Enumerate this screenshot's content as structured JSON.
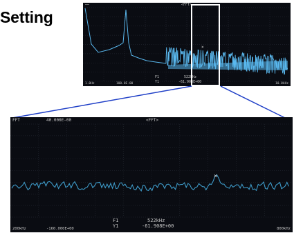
{
  "title": "Setting",
  "top_screen": {
    "header_mode": "<FFT>",
    "footer": {
      "left": "1.0Hz",
      "mid": "100.0E-00",
      "right": "10.0kHz"
    },
    "marker": {
      "f_label": "F1",
      "f_value": "522kHz",
      "y_label": "Y1",
      "y_value": "-61.908E+00"
    },
    "trace_color": "#5ab8ee"
  },
  "bottom_screen": {
    "header_left": "FFT",
    "header_ref": "40.000E-00",
    "header_mode": "<FFT>",
    "footer": {
      "left": "200kHz",
      "mid": "-160.000E+00",
      "right": "800kHz"
    },
    "marker": {
      "f_label": "F1",
      "f_value": "522kHz",
      "y_label": "Y1",
      "y_value": "-61.908E+00"
    },
    "trace_color": "#3e9bc9"
  },
  "connector_color": "#1f3fc7"
}
